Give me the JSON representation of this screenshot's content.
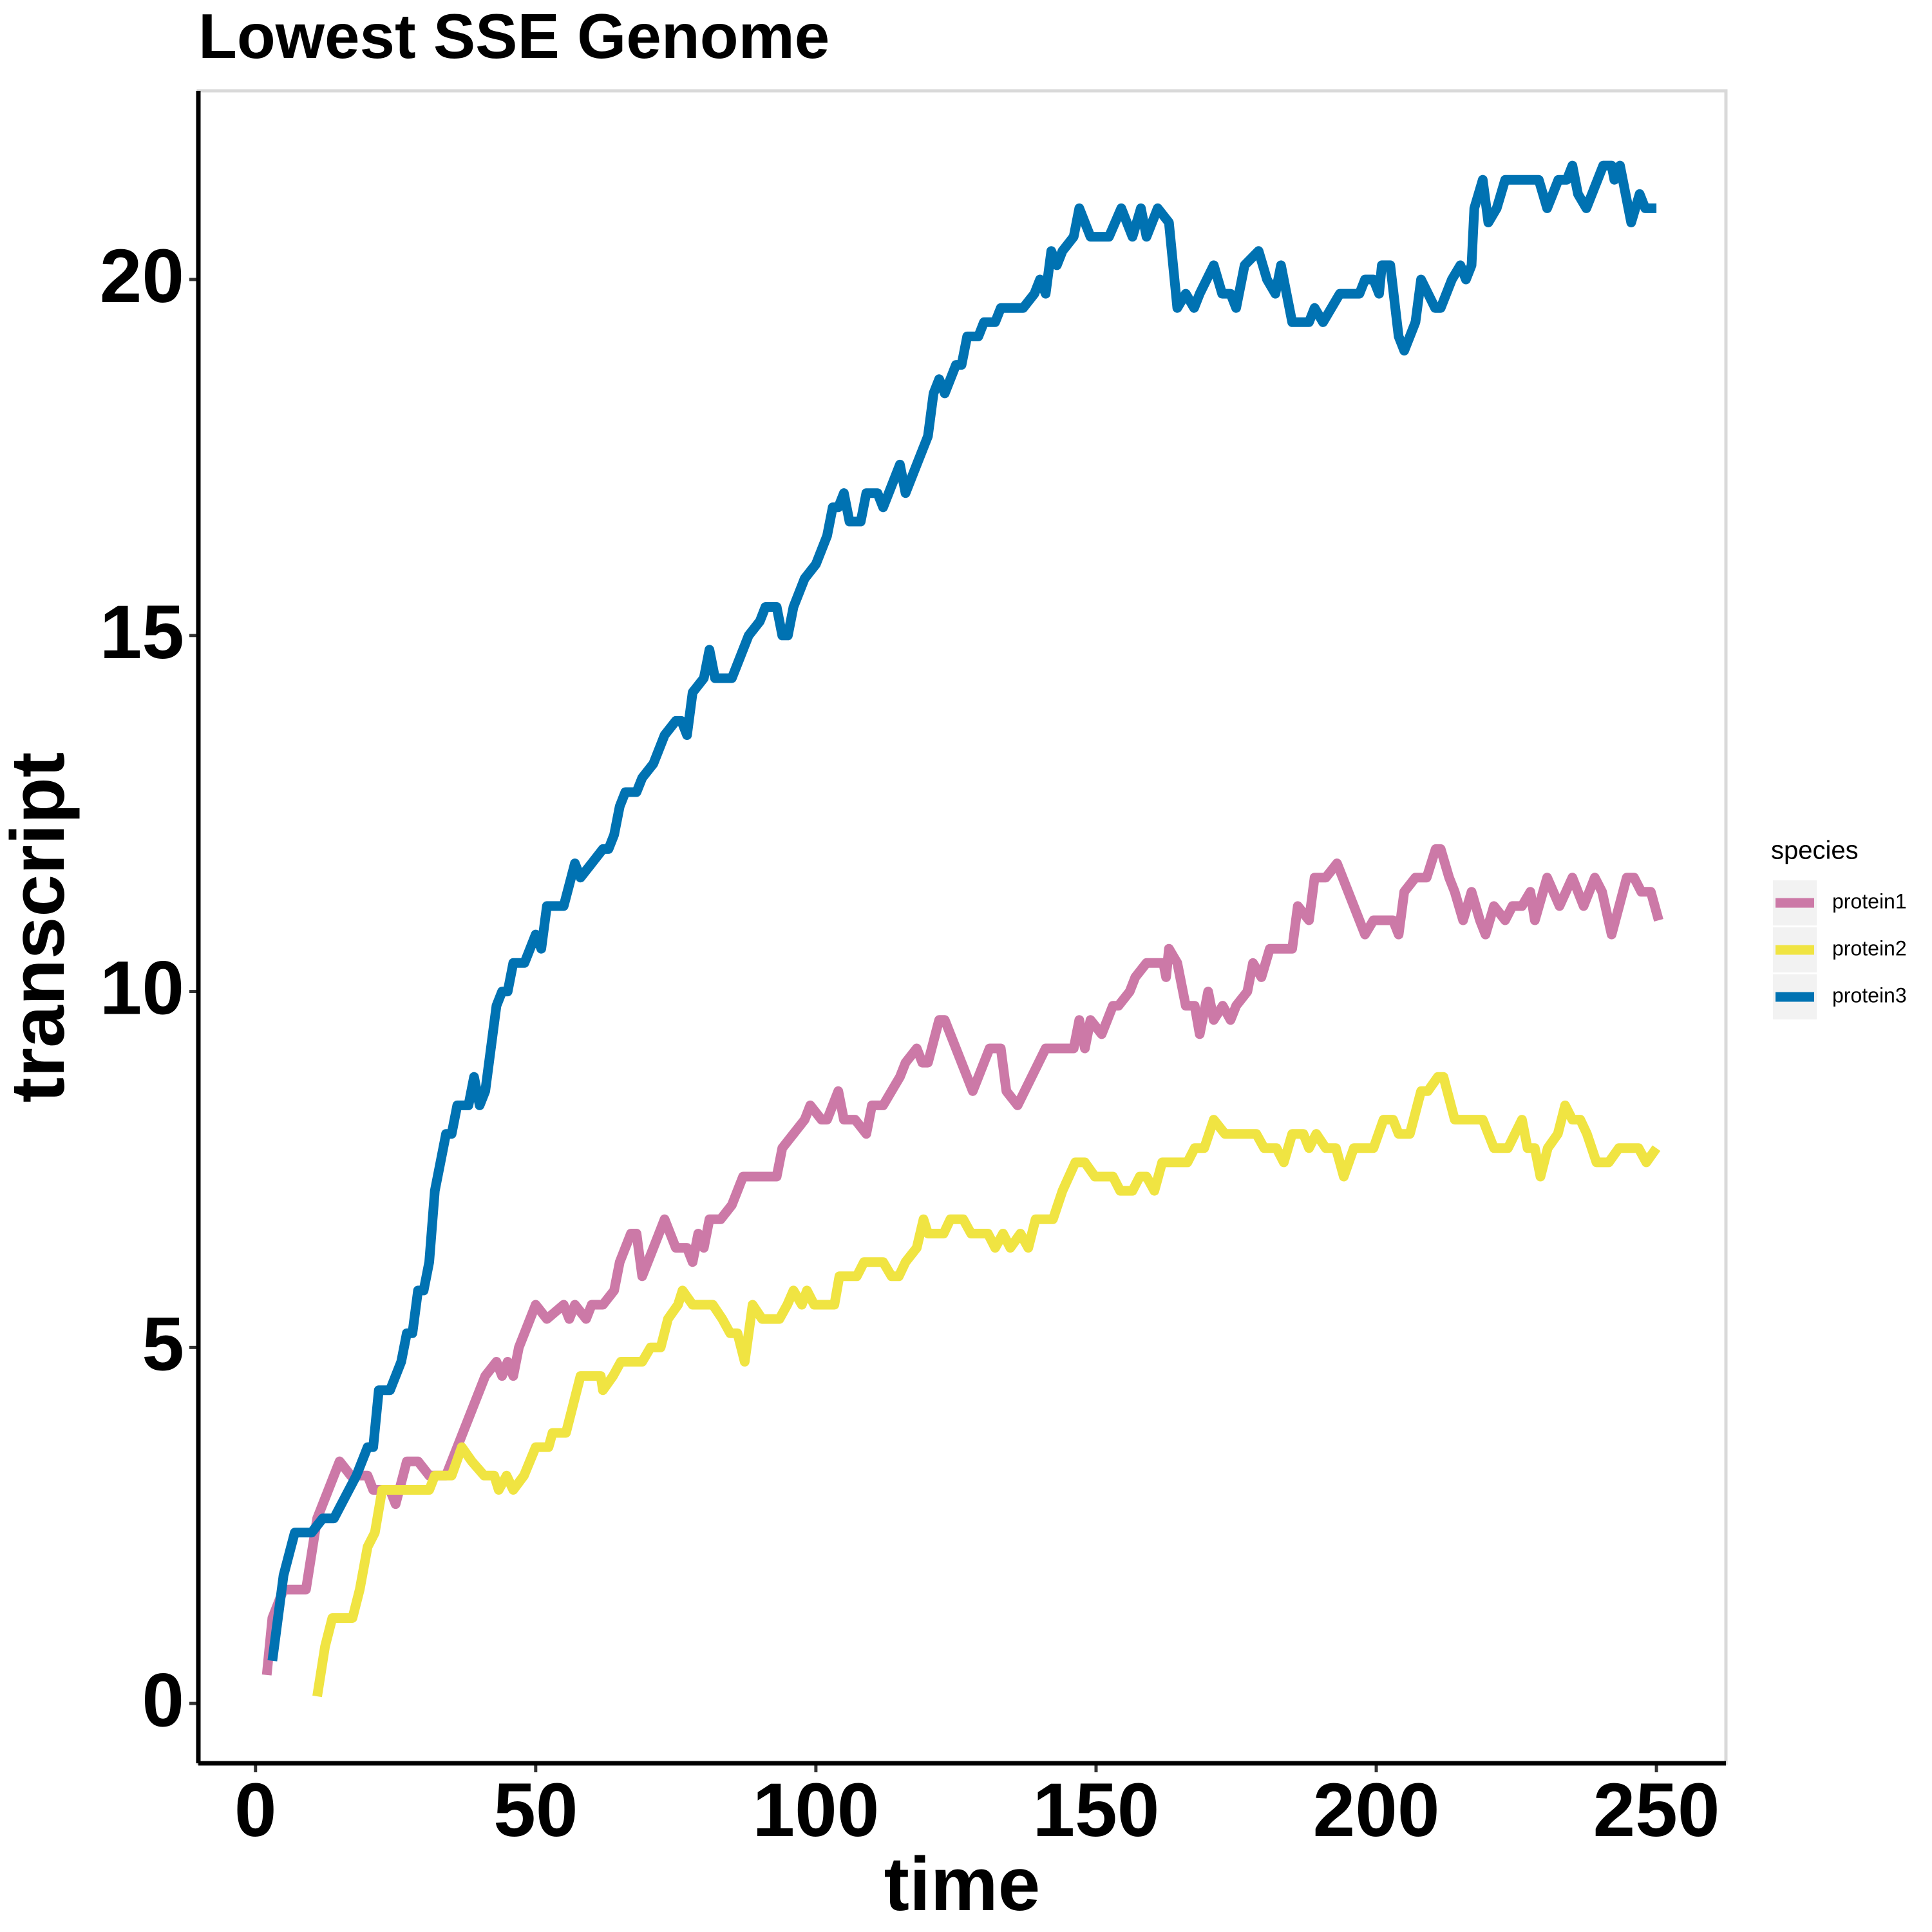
{
  "chart_data": {
    "type": "line",
    "title": "Lowest SSE Genome",
    "x_label": "time",
    "y_label": "transcript",
    "legend_title": "species",
    "legend_position": "right",
    "grid": false,
    "xlim": [
      -10.2,
      262.4
    ],
    "ylim": [
      -0.84,
      22.65
    ],
    "xticks": [
      0,
      50,
      100,
      150,
      200,
      250
    ],
    "yticks": [
      0,
      5,
      10,
      15,
      20
    ],
    "series": [
      {
        "name": "protein1",
        "color": "#CC79A7",
        "x": [
          2,
          3,
          5,
          9,
          11,
          12,
          14,
          15,
          17,
          20,
          21,
          24,
          25,
          27,
          29,
          31,
          34,
          36,
          39,
          41,
          43,
          44,
          45,
          46,
          47,
          49,
          50,
          52,
          55,
          56,
          57,
          59,
          60,
          62,
          64,
          65,
          67,
          68,
          69,
          71,
          73,
          75,
          77,
          78,
          79,
          80,
          81,
          83,
          85,
          87,
          93,
          94,
          96,
          98,
          99,
          101,
          102,
          104,
          105,
          107,
          109,
          110,
          112,
          115,
          116,
          118,
          119,
          120,
          122,
          123,
          126,
          128,
          131,
          133,
          134,
          136,
          141,
          146,
          147,
          148,
          149,
          151,
          153,
          154,
          156,
          157,
          159,
          162,
          162.5,
          163,
          164.5,
          166,
          167.6,
          168.5,
          170,
          171,
          172.6,
          174,
          175,
          177,
          178,
          179.5,
          181,
          185,
          186,
          188,
          189,
          191,
          193,
          195,
          198,
          199.5,
          203,
          204,
          205,
          207,
          209,
          210.6,
          211.5,
          213,
          214,
          215.5,
          217,
          218.5,
          219.5,
          221,
          223,
          224.3,
          226,
          227.5,
          228.3,
          230.5,
          232.7,
          235,
          237,
          239,
          240.3,
          242,
          244.7,
          246,
          247.3,
          249,
          250.4
        ],
        "values": [
          0.4,
          1.2,
          1.6,
          1.6,
          2.6,
          2.8,
          3.2,
          3.4,
          3.2,
          3.2,
          3.0,
          3.0,
          2.8,
          3.4,
          3.4,
          3.2,
          3.2,
          3.6,
          4.2,
          4.6,
          4.8,
          4.6,
          4.8,
          4.6,
          5.0,
          5.4,
          5.6,
          5.4,
          5.6,
          5.4,
          5.6,
          5.4,
          5.6,
          5.6,
          5.8,
          6.2,
          6.6,
          6.6,
          6.0,
          6.4,
          6.8,
          6.4,
          6.4,
          6.2,
          6.6,
          6.4,
          6.8,
          6.8,
          7.0,
          7.4,
          7.4,
          7.8,
          8.0,
          8.2,
          8.4,
          8.2,
          8.2,
          8.6,
          8.2,
          8.2,
          8.0,
          8.4,
          8.4,
          8.8,
          9.0,
          9.2,
          9.0,
          9.0,
          9.6,
          9.6,
          9.0,
          8.6,
          9.2,
          9.2,
          8.6,
          8.4,
          9.2,
          9.2,
          9.6,
          9.2,
          9.6,
          9.4,
          9.8,
          9.8,
          10.0,
          10.2,
          10.4,
          10.4,
          10.2,
          10.6,
          10.4,
          9.8,
          9.8,
          9.4,
          10.0,
          9.6,
          9.8,
          9.6,
          9.8,
          10.0,
          10.4,
          10.2,
          10.6,
          10.6,
          11.2,
          11.0,
          11.6,
          11.6,
          11.8,
          11.4,
          10.8,
          11.0,
          11.0,
          10.8,
          11.4,
          11.6,
          11.6,
          12.0,
          12.0,
          11.6,
          11.4,
          11.0,
          11.4,
          11.0,
          10.8,
          11.2,
          11.0,
          11.2,
          11.2,
          11.4,
          11.0,
          11.6,
          11.2,
          11.6,
          11.2,
          11.6,
          11.4,
          10.8,
          11.6,
          11.6,
          11.4,
          11.4,
          11.0
        ]
      },
      {
        "name": "protein2",
        "color": "#F0E442",
        "x": [
          11,
          12.4,
          13.7,
          17.3,
          18.6,
          20,
          21.3,
          22.6,
          31,
          32,
          35,
          36.8,
          38.6,
          40.8,
          42.6,
          43.4,
          44.8,
          46,
          47.9,
          50,
          52.3,
          53,
          55.4,
          56.7,
          58,
          61.6,
          62,
          63.8,
          65.2,
          69,
          70.5,
          72.3,
          73.6,
          75.4,
          76.2,
          78,
          81.6,
          83.3,
          84.7,
          86,
          87.3,
          88.7,
          90.4,
          93.5,
          94.9,
          96,
          97.5,
          98.4,
          99.7,
          103.3,
          104.2,
          107.3,
          108.6,
          112,
          113.5,
          114.8,
          116,
          118,
          119.2,
          120,
          122.8,
          124,
          126.3,
          127.7,
          130.7,
          132,
          133.4,
          134.7,
          136.5,
          137.9,
          139.2,
          142.3,
          144,
          146.3,
          148,
          149.8,
          153,
          154.3,
          156.5,
          157.8,
          159,
          160.4,
          161.8,
          166.3,
          167.6,
          169.3,
          171,
          173,
          178.6,
          180,
          182.2,
          183.5,
          185,
          187,
          188,
          189.3,
          191,
          192.8,
          194.2,
          196,
          199.5,
          201.3,
          203,
          204,
          206,
          208,
          209.2,
          211,
          212,
          214,
          219,
          220,
          221,
          223.5,
          226,
          227,
          228.3,
          229.3,
          230.6,
          232.4,
          233.7,
          235,
          236.4,
          237.6,
          239.3,
          241.5,
          243.3,
          246.8,
          248.2,
          250
        ],
        "values": [
          0.1,
          0.8,
          1.2,
          1.2,
          1.6,
          2.2,
          2.4,
          3.0,
          3.0,
          3.2,
          3.2,
          3.6,
          3.4,
          3.2,
          3.2,
          3.0,
          3.2,
          3.0,
          3.2,
          3.6,
          3.6,
          3.8,
          3.8,
          4.2,
          4.6,
          4.6,
          4.4,
          4.6,
          4.8,
          4.8,
          5.0,
          5.0,
          5.4,
          5.6,
          5.8,
          5.6,
          5.6,
          5.4,
          5.2,
          5.2,
          4.8,
          5.6,
          5.4,
          5.4,
          5.6,
          5.8,
          5.6,
          5.8,
          5.6,
          5.6,
          6.0,
          6.0,
          6.2,
          6.2,
          6.0,
          6.0,
          6.2,
          6.4,
          6.8,
          6.6,
          6.6,
          6.8,
          6.8,
          6.6,
          6.6,
          6.4,
          6.6,
          6.4,
          6.6,
          6.4,
          6.8,
          6.8,
          7.2,
          7.6,
          7.6,
          7.4,
          7.4,
          7.2,
          7.2,
          7.4,
          7.4,
          7.2,
          7.6,
          7.6,
          7.8,
          7.8,
          8.2,
          8.0,
          8.0,
          7.8,
          7.8,
          7.6,
          8.0,
          8.0,
          7.8,
          8.0,
          7.8,
          7.8,
          7.4,
          7.8,
          7.8,
          8.2,
          8.2,
          8.0,
          8.0,
          8.6,
          8.6,
          8.8,
          8.8,
          8.2,
          8.2,
          8.0,
          7.8,
          7.8,
          8.2,
          7.8,
          7.8,
          7.4,
          7.8,
          8.0,
          8.4,
          8.2,
          8.2,
          8.0,
          7.6,
          7.6,
          7.8,
          7.8,
          7.6,
          7.8
        ]
      },
      {
        "name": "protein3",
        "color": "#0072B2",
        "x": [
          3,
          5,
          7,
          10,
          12,
          14,
          18,
          20,
          21,
          22,
          24,
          26,
          27,
          28,
          29,
          30,
          31,
          32,
          33,
          34,
          35,
          36,
          38,
          39,
          40,
          41,
          43,
          44,
          45,
          46,
          48,
          50,
          51,
          52,
          55,
          57,
          58,
          60,
          62,
          63,
          64,
          65,
          66,
          68,
          69,
          71,
          73,
          75,
          76,
          77,
          78,
          80,
          81,
          82,
          85,
          86,
          88,
          90,
          91,
          93,
          94,
          95,
          96,
          98,
          100,
          102,
          103,
          104,
          105,
          106,
          108,
          109,
          111,
          112,
          114,
          115,
          116,
          118,
          120,
          121,
          122,
          123,
          125,
          126,
          127,
          129,
          130,
          132,
          133,
          137,
          139,
          140,
          141,
          142,
          143,
          144,
          146,
          147,
          149,
          150,
          152.3,
          154.5,
          156.5,
          158,
          159,
          161,
          163,
          164.5,
          166,
          167.5,
          168.5,
          171,
          172.5,
          174,
          175,
          176.5,
          179,
          180.5,
          182,
          183,
          185,
          188,
          189,
          190.5,
          193.5,
          197,
          198,
          199.5,
          200.5,
          201,
          202.5,
          204,
          205,
          207,
          208,
          210.5,
          211.5,
          213.5,
          215,
          216,
          217,
          217.5,
          219,
          220,
          221.5,
          223,
          229,
          230.5,
          232.5,
          234,
          235,
          236,
          237.5,
          240.5,
          242,
          242.5,
          243.5,
          245.5,
          247,
          248,
          250
        ],
        "values": [
          0.6,
          1.8,
          2.4,
          2.4,
          2.6,
          2.6,
          3.2,
          3.6,
          3.6,
          4.4,
          4.4,
          4.8,
          5.2,
          5.2,
          5.8,
          5.8,
          6.2,
          7.2,
          7.6,
          8.0,
          8.0,
          8.4,
          8.4,
          8.8,
          8.4,
          8.6,
          9.8,
          10.0,
          10.0,
          10.4,
          10.4,
          10.8,
          10.6,
          11.2,
          11.2,
          11.8,
          11.6,
          11.8,
          12.0,
          12.0,
          12.2,
          12.6,
          12.8,
          12.8,
          13.0,
          13.2,
          13.6,
          13.8,
          13.8,
          13.6,
          14.2,
          14.4,
          14.8,
          14.4,
          14.4,
          14.6,
          15.0,
          15.2,
          15.4,
          15.4,
          15.0,
          15.0,
          15.4,
          15.8,
          16.0,
          16.4,
          16.8,
          16.8,
          17.0,
          16.6,
          16.6,
          17.0,
          17.0,
          16.8,
          17.2,
          17.4,
          17.0,
          17.4,
          17.8,
          18.4,
          18.6,
          18.4,
          18.8,
          18.8,
          19.2,
          19.2,
          19.4,
          19.4,
          19.6,
          19.6,
          19.8,
          20.0,
          19.8,
          20.4,
          20.2,
          20.4,
          20.6,
          21.0,
          20.6,
          20.6,
          20.6,
          21.0,
          20.6,
          21.0,
          20.6,
          21.0,
          20.8,
          19.6,
          19.8,
          19.6,
          19.8,
          20.2,
          19.8,
          19.8,
          19.6,
          20.2,
          20.4,
          20.0,
          19.8,
          20.2,
          19.4,
          19.4,
          19.6,
          19.4,
          19.8,
          19.8,
          20.0,
          20.0,
          19.8,
          20.2,
          20.2,
          19.2,
          19.0,
          19.4,
          20.0,
          19.6,
          19.6,
          20.0,
          20.2,
          20.0,
          20.2,
          21.0,
          21.4,
          20.8,
          21.0,
          21.4,
          21.4,
          21.0,
          21.4,
          21.4,
          21.6,
          21.2,
          21.0,
          21.6,
          21.6,
          21.4,
          21.6,
          20.8,
          21.2,
          21.0,
          21.0
        ]
      }
    ]
  }
}
